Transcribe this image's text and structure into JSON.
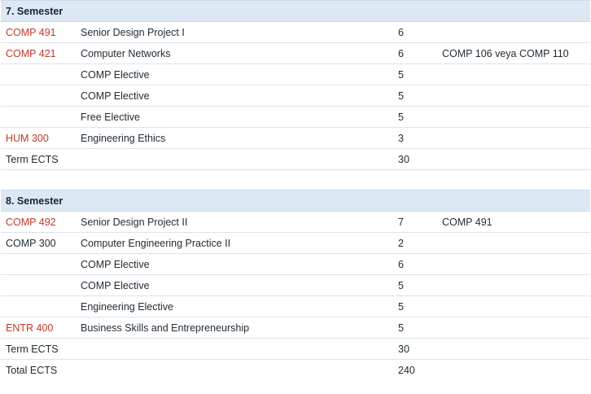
{
  "semesters": [
    {
      "title": "7. Semester",
      "rows": [
        {
          "code": "COMP 491",
          "name": "Senior Design Project I",
          "ects": "6",
          "prereq": ""
        },
        {
          "code": "COMP 421",
          "name": "Computer Networks",
          "ects": "6",
          "prereq": "COMP 106 veya COMP 110"
        },
        {
          "code": "",
          "name": "COMP Elective",
          "ects": "5",
          "prereq": ""
        },
        {
          "code": "",
          "name": "COMP Elective",
          "ects": "5",
          "prereq": ""
        },
        {
          "code": "",
          "name": "Free Elective",
          "ects": "5",
          "prereq": ""
        },
        {
          "code": "HUM 300",
          "name": "Engineering Ethics",
          "ects": "3",
          "prereq": ""
        }
      ],
      "term_label": "Term ECTS",
      "term_ects": "30"
    },
    {
      "title": "8. Semester",
      "rows": [
        {
          "code": "COMP 492",
          "name": "Senior Design Project II",
          "ects": "7",
          "prereq": "COMP 491"
        },
        {
          "code": "COMP 300",
          "name": "Computer Engineering Practice II",
          "ects": "2",
          "prereq": ""
        },
        {
          "code": "",
          "name": "COMP Elective",
          "ects": "6",
          "prereq": ""
        },
        {
          "code": "",
          "name": "COMP Elective",
          "ects": "5",
          "prereq": ""
        },
        {
          "code": "",
          "name": "Engineering Elective",
          "ects": "5",
          "prereq": ""
        },
        {
          "code": "ENTR 400",
          "name": "Business Skills and Entrepreneurship",
          "ects": "5",
          "prereq": ""
        }
      ],
      "term_label": "Term ECTS",
      "term_ects": "30"
    }
  ],
  "total_label": "Total ECTS",
  "total_ects": "240"
}
